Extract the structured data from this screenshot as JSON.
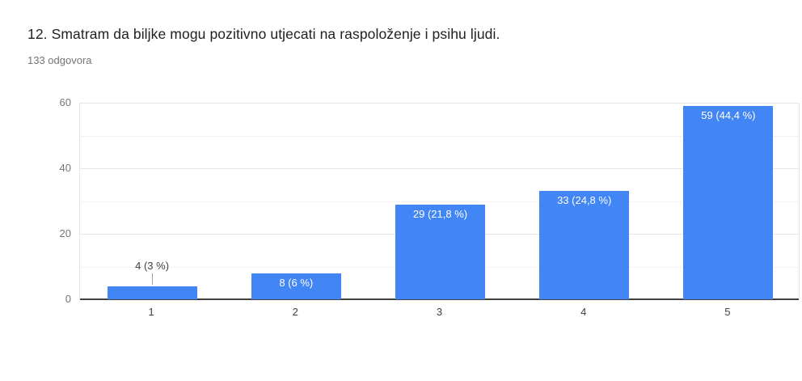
{
  "header": {
    "title": "12. Smatram da biljke mogu pozitivno utjecati na raspoloženje i psihu ljudi.",
    "subtitle": "133 odgovora"
  },
  "chart_data": {
    "type": "bar",
    "title": "12. Smatram da biljke mogu pozitivno utjecati na raspoloženje i psihu ljudi.",
    "subtitle": "133 odgovora",
    "categories": [
      "1",
      "2",
      "3",
      "4",
      "5"
    ],
    "values": [
      4,
      8,
      29,
      33,
      59
    ],
    "value_labels": [
      "4 (3 %)",
      "8 (6 %)",
      "29 (21,8 %)",
      "33 (24,8 %)",
      "59 (44,4 %)"
    ],
    "total_responses": 133,
    "xlabel": "",
    "ylabel": "",
    "ylim": [
      0,
      60
    ],
    "yticks": [
      0,
      20,
      40,
      60
    ],
    "minor_yticks": [
      10,
      30,
      50
    ],
    "grid": "on",
    "legend": "none",
    "colors": {
      "bar": "#4285f4",
      "label_inside": "#ffffff",
      "label_outside": "#424242",
      "axis_line": "#424242",
      "gridline": "#e6e6e6"
    }
  }
}
